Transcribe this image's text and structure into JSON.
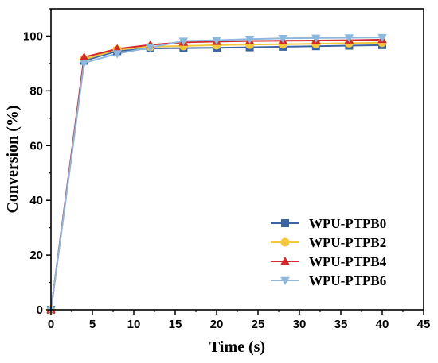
{
  "chart_data": {
    "type": "line",
    "title": "",
    "xlabel": "Time (s)",
    "ylabel": "Conversion (%)",
    "xlim": [
      0,
      45
    ],
    "ylim": [
      0,
      110
    ],
    "xticks": [
      0,
      5,
      10,
      15,
      20,
      25,
      30,
      35,
      40,
      45
    ],
    "yticks": [
      0,
      20,
      40,
      60,
      80,
      100
    ],
    "grid": false,
    "legend_position": "bottom-right",
    "x": [
      0,
      4,
      8,
      12,
      16,
      20,
      24,
      28,
      32,
      36,
      40
    ],
    "series": [
      {
        "name": "WPU-PTPB0",
        "marker": "square",
        "color": "#3a64a4",
        "values": [
          0,
          91.0,
          94.5,
          95.5,
          95.6,
          95.7,
          95.9,
          96.1,
          96.3,
          96.5,
          96.7
        ]
      },
      {
        "name": "WPU-PTPB2",
        "marker": "circle",
        "color": "#f5c83c",
        "values": [
          0,
          91.5,
          95.0,
          96.1,
          96.4,
          96.7,
          96.9,
          97.0,
          97.2,
          97.4,
          97.6
        ]
      },
      {
        "name": "WPU-PTPB4",
        "marker": "triangle-up",
        "color": "#d22a2a",
        "values": [
          0,
          92.3,
          95.3,
          96.8,
          97.7,
          98.0,
          98.2,
          98.3,
          98.4,
          98.5,
          98.7
        ]
      },
      {
        "name": "WPU-PTPB6",
        "marker": "triangle-down",
        "color": "#8cb8de",
        "values": [
          0,
          90.2,
          93.6,
          95.8,
          98.2,
          98.5,
          98.9,
          99.2,
          99.3,
          99.4,
          99.5
        ]
      }
    ]
  }
}
